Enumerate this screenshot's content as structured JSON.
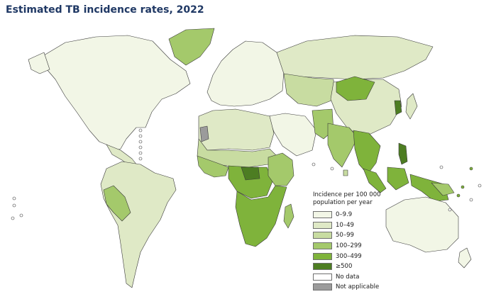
{
  "title": "Estimated TB incidence rates, 2022",
  "legend": {
    "title_line1": "Incidence per 100 000",
    "title_line2": "population per year",
    "items": [
      {
        "label": "0–9.9",
        "color": "#f2f6e6"
      },
      {
        "label": "10–49",
        "color": "#dfe9c6"
      },
      {
        "label": "50–99",
        "color": "#c8dca1"
      },
      {
        "label": "100–299",
        "color": "#a4c96b"
      },
      {
        "label": "300–499",
        "color": "#7fb33b"
      },
      {
        "label": "≥500",
        "color": "#4d7d22"
      },
      {
        "label": "No data",
        "color": "#ffffff"
      },
      {
        "label": "Not applicable",
        "color": "#9b9b9b"
      }
    ]
  }
}
